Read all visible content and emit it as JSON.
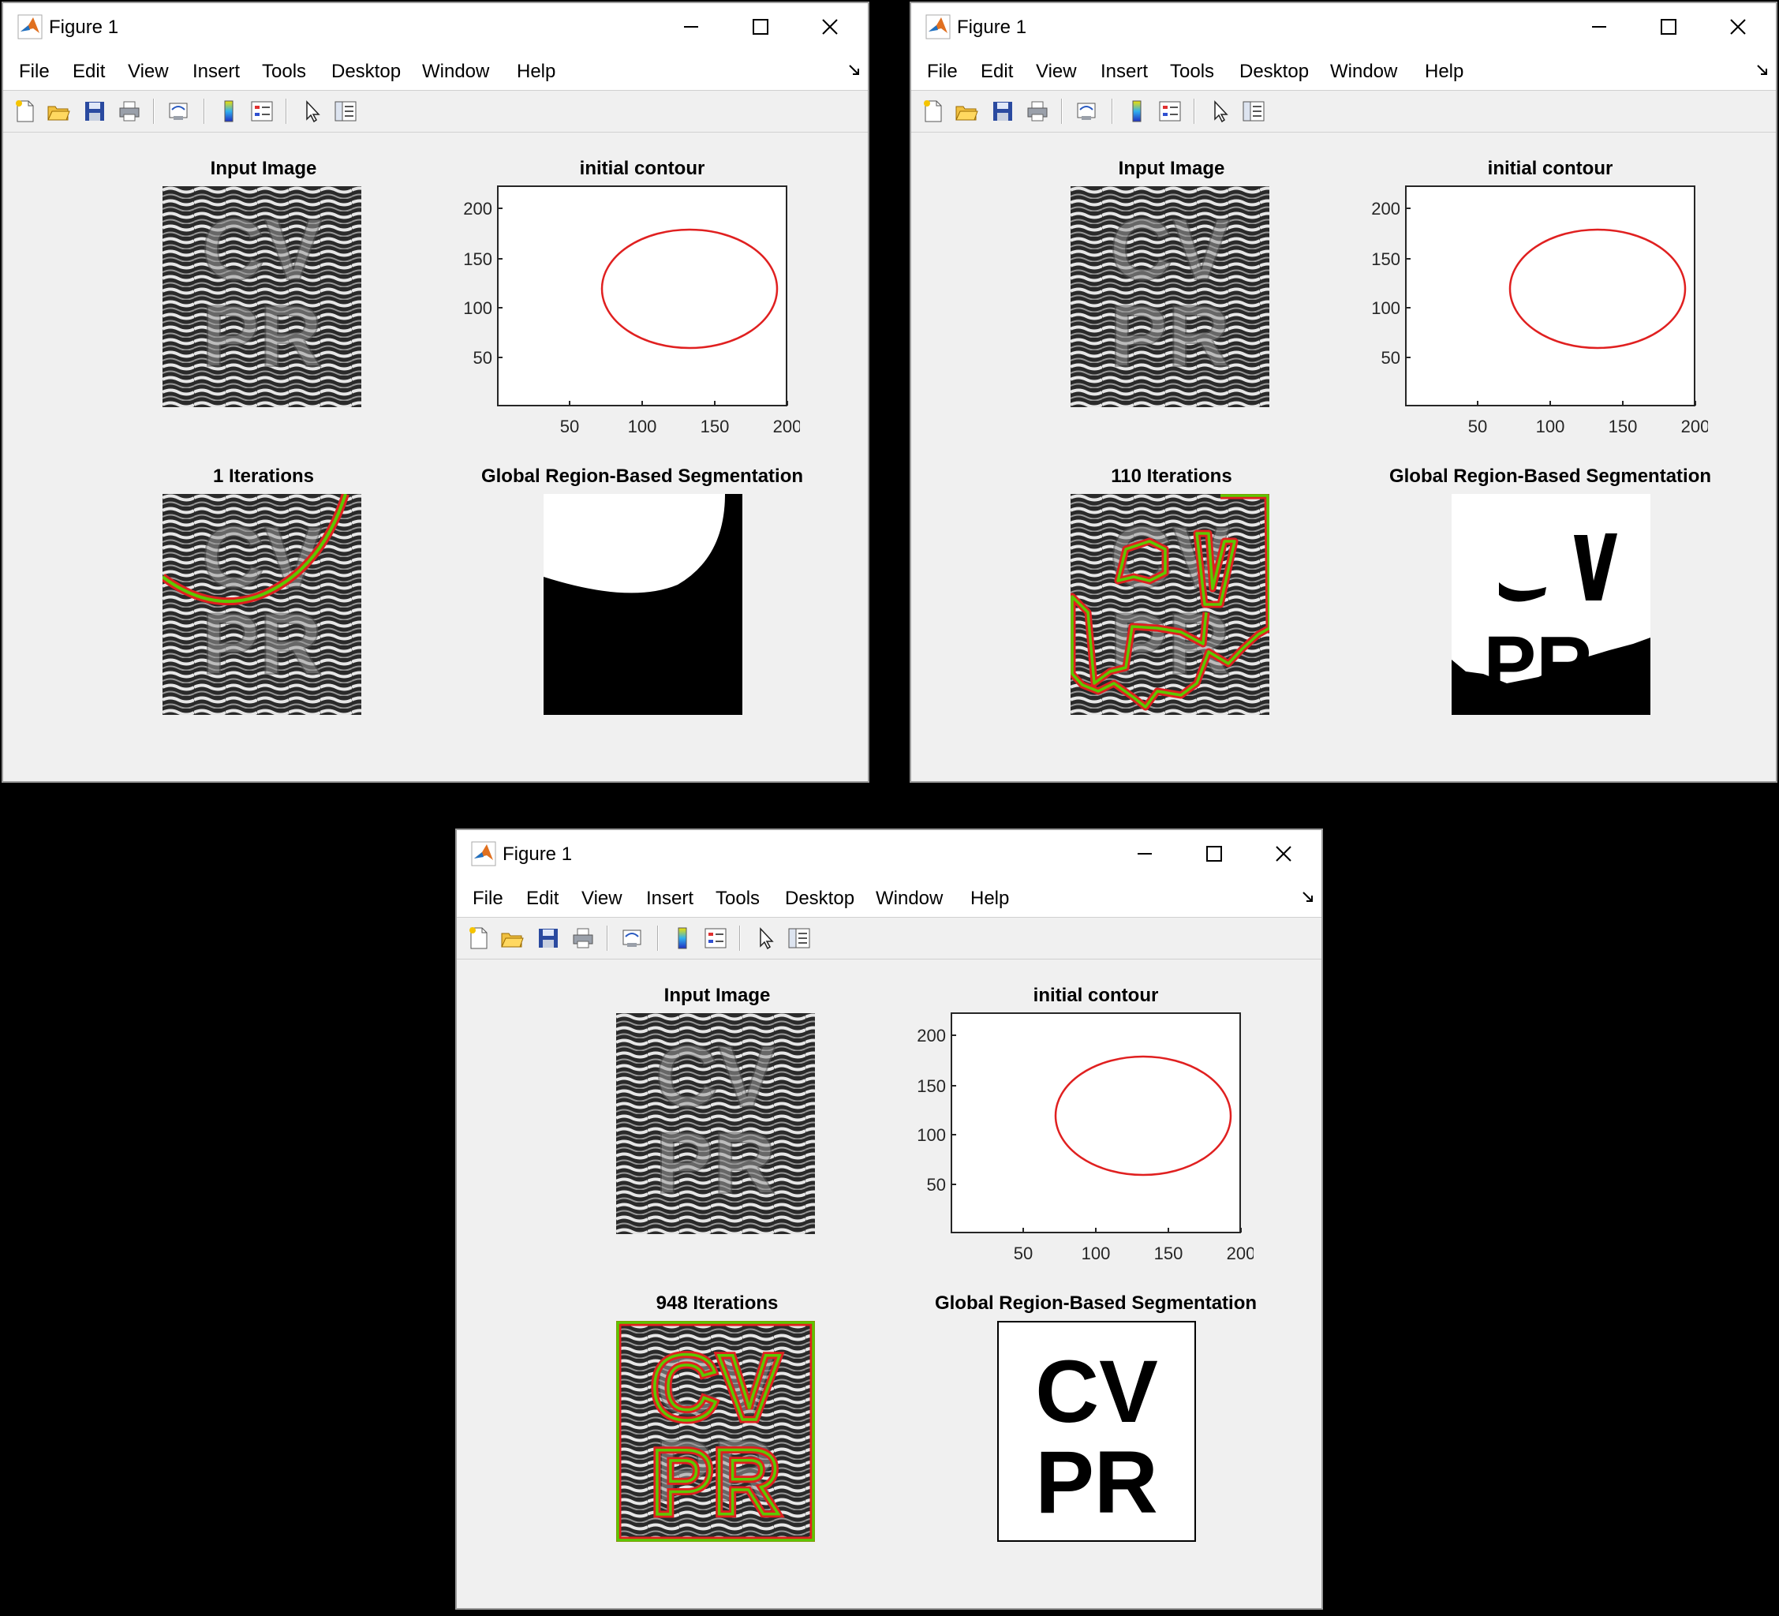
{
  "windows": [
    {
      "title": "Figure 1",
      "menu": [
        "File",
        "Edit",
        "View",
        "Insert",
        "Tools",
        "Desktop",
        "Window",
        "Help"
      ],
      "panels": {
        "input_title": "Input Image",
        "contour_title": "initial contour",
        "iter_title": "1 Iterations",
        "seg_title": "Global Region-Based Segmentation"
      },
      "axes": {
        "yticks": [
          "200",
          "150",
          "100",
          "50"
        ],
        "xticks": [
          "50",
          "100",
          "150",
          "200"
        ]
      }
    },
    {
      "title": "Figure 1",
      "menu": [
        "File",
        "Edit",
        "View",
        "Insert",
        "Tools",
        "Desktop",
        "Window",
        "Help"
      ],
      "panels": {
        "input_title": "Input Image",
        "contour_title": "initial contour",
        "iter_title": "110 Iterations",
        "seg_title": "Global Region-Based Segmentation"
      },
      "axes": {
        "yticks": [
          "200",
          "150",
          "100",
          "50"
        ],
        "xticks": [
          "50",
          "100",
          "150",
          "200"
        ]
      }
    },
    {
      "title": "Figure 1",
      "menu": [
        "File",
        "Edit",
        "View",
        "Insert",
        "Tools",
        "Desktop",
        "Window",
        "Help"
      ],
      "panels": {
        "input_title": "Input Image",
        "contour_title": "initial contour",
        "iter_title": "948 Iterations",
        "seg_title": "Global Region-Based Segmentation"
      },
      "axes": {
        "yticks": [
          "200",
          "150",
          "100",
          "50"
        ],
        "xticks": [
          "50",
          "100",
          "150",
          "200"
        ]
      }
    }
  ],
  "image_letters": {
    "top": "CV",
    "bottom": "PR"
  },
  "colors": {
    "contour": "#e02020",
    "contour_fill": "#5cc800",
    "accent": "#d97a1a"
  }
}
